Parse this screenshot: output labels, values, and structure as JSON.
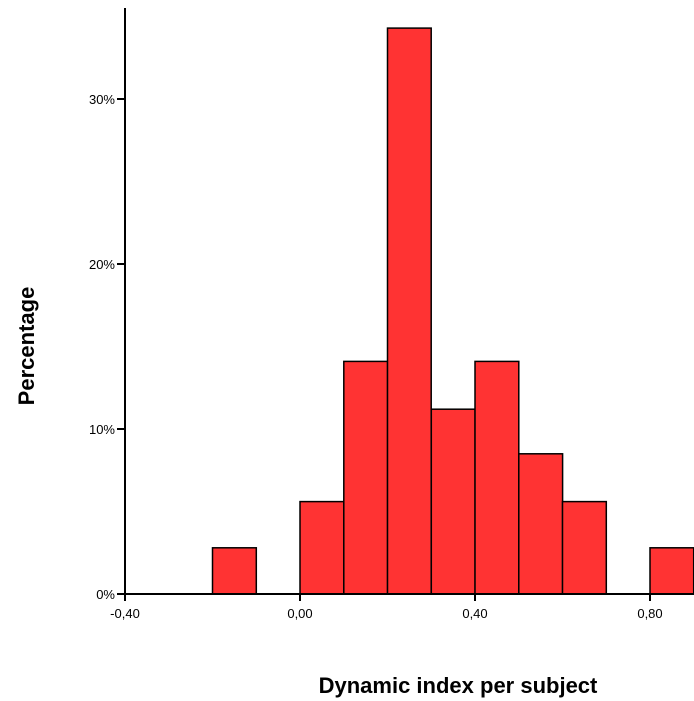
{
  "chart_data": {
    "type": "bar",
    "xlabel": "Dynamic index per subject",
    "ylabel": "Percentage",
    "x_ticks": [
      {
        "value": -0.4,
        "label": "-0,40"
      },
      {
        "value": 0.0,
        "label": "0,00"
      },
      {
        "value": 0.4,
        "label": "0,40"
      },
      {
        "value": 0.8,
        "label": "0,80"
      }
    ],
    "y_ticks": [
      {
        "value": 0,
        "label": "0%"
      },
      {
        "value": 10,
        "label": "10%"
      },
      {
        "value": 20,
        "label": "20%"
      },
      {
        "value": 30,
        "label": "30%"
      }
    ],
    "bin_width": 0.1,
    "bins": [
      {
        "start": -0.2,
        "end": -0.1,
        "value": 2.8
      },
      {
        "start": 0.0,
        "end": 0.1,
        "value": 5.6
      },
      {
        "start": 0.1,
        "end": 0.2,
        "value": 14.1
      },
      {
        "start": 0.2,
        "end": 0.3,
        "value": 34.3
      },
      {
        "start": 0.3,
        "end": 0.4,
        "value": 11.2
      },
      {
        "start": 0.4,
        "end": 0.5,
        "value": 14.1
      },
      {
        "start": 0.5,
        "end": 0.6,
        "value": 8.5
      },
      {
        "start": 0.6,
        "end": 0.7,
        "value": 5.6
      },
      {
        "start": 0.8,
        "end": 0.9,
        "value": 2.8
      }
    ],
    "xlim": [
      -0.4,
      0.9
    ],
    "ylim": [
      0,
      36
    ],
    "bar_color": "#ff3333",
    "bar_stroke": "#000000",
    "grid": false
  }
}
